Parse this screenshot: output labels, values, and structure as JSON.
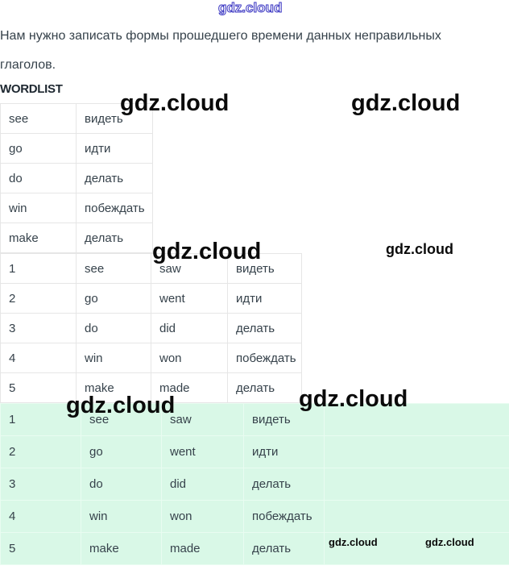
{
  "brand": {
    "watermark_text": "gdz.cloud"
  },
  "intro": {
    "lines": [
      "Нам нужно записать формы прошедшего времени данных неправильных",
      "глаголов."
    ]
  },
  "wordlist": {
    "heading": "WORDLIST",
    "rows": [
      [
        "see",
        "видеть"
      ],
      [
        "go",
        "идти"
      ],
      [
        "do",
        "делать"
      ],
      [
        "win",
        "побеждать"
      ],
      [
        "make",
        "делать"
      ]
    ]
  },
  "answers": {
    "rows": [
      [
        "1",
        "see",
        "saw",
        "видеть"
      ],
      [
        "2",
        "go",
        "went",
        "идти"
      ],
      [
        "3",
        "do",
        "did",
        "делать"
      ],
      [
        "4",
        "win",
        "won",
        "побеждать"
      ],
      [
        "5",
        "make",
        "made",
        "делать"
      ]
    ]
  },
  "answers_highlighted": {
    "rows": [
      [
        "1",
        "see",
        "saw",
        "видеть",
        ""
      ],
      [
        "2",
        "go",
        "went",
        "идти",
        ""
      ],
      [
        "3",
        "do",
        "did",
        "делать",
        ""
      ],
      [
        "4",
        "win",
        "won",
        "побеждать",
        ""
      ],
      [
        "5",
        "make",
        "made",
        "делать",
        ""
      ]
    ]
  },
  "colors": {
    "text": "#36424b",
    "table_border": "#e6e6e6",
    "green_bg": "#d9f8e7",
    "green_border": "#e9fcf1",
    "wm_black": "#0a0a0a",
    "wm_blue": "#3a36c2"
  }
}
